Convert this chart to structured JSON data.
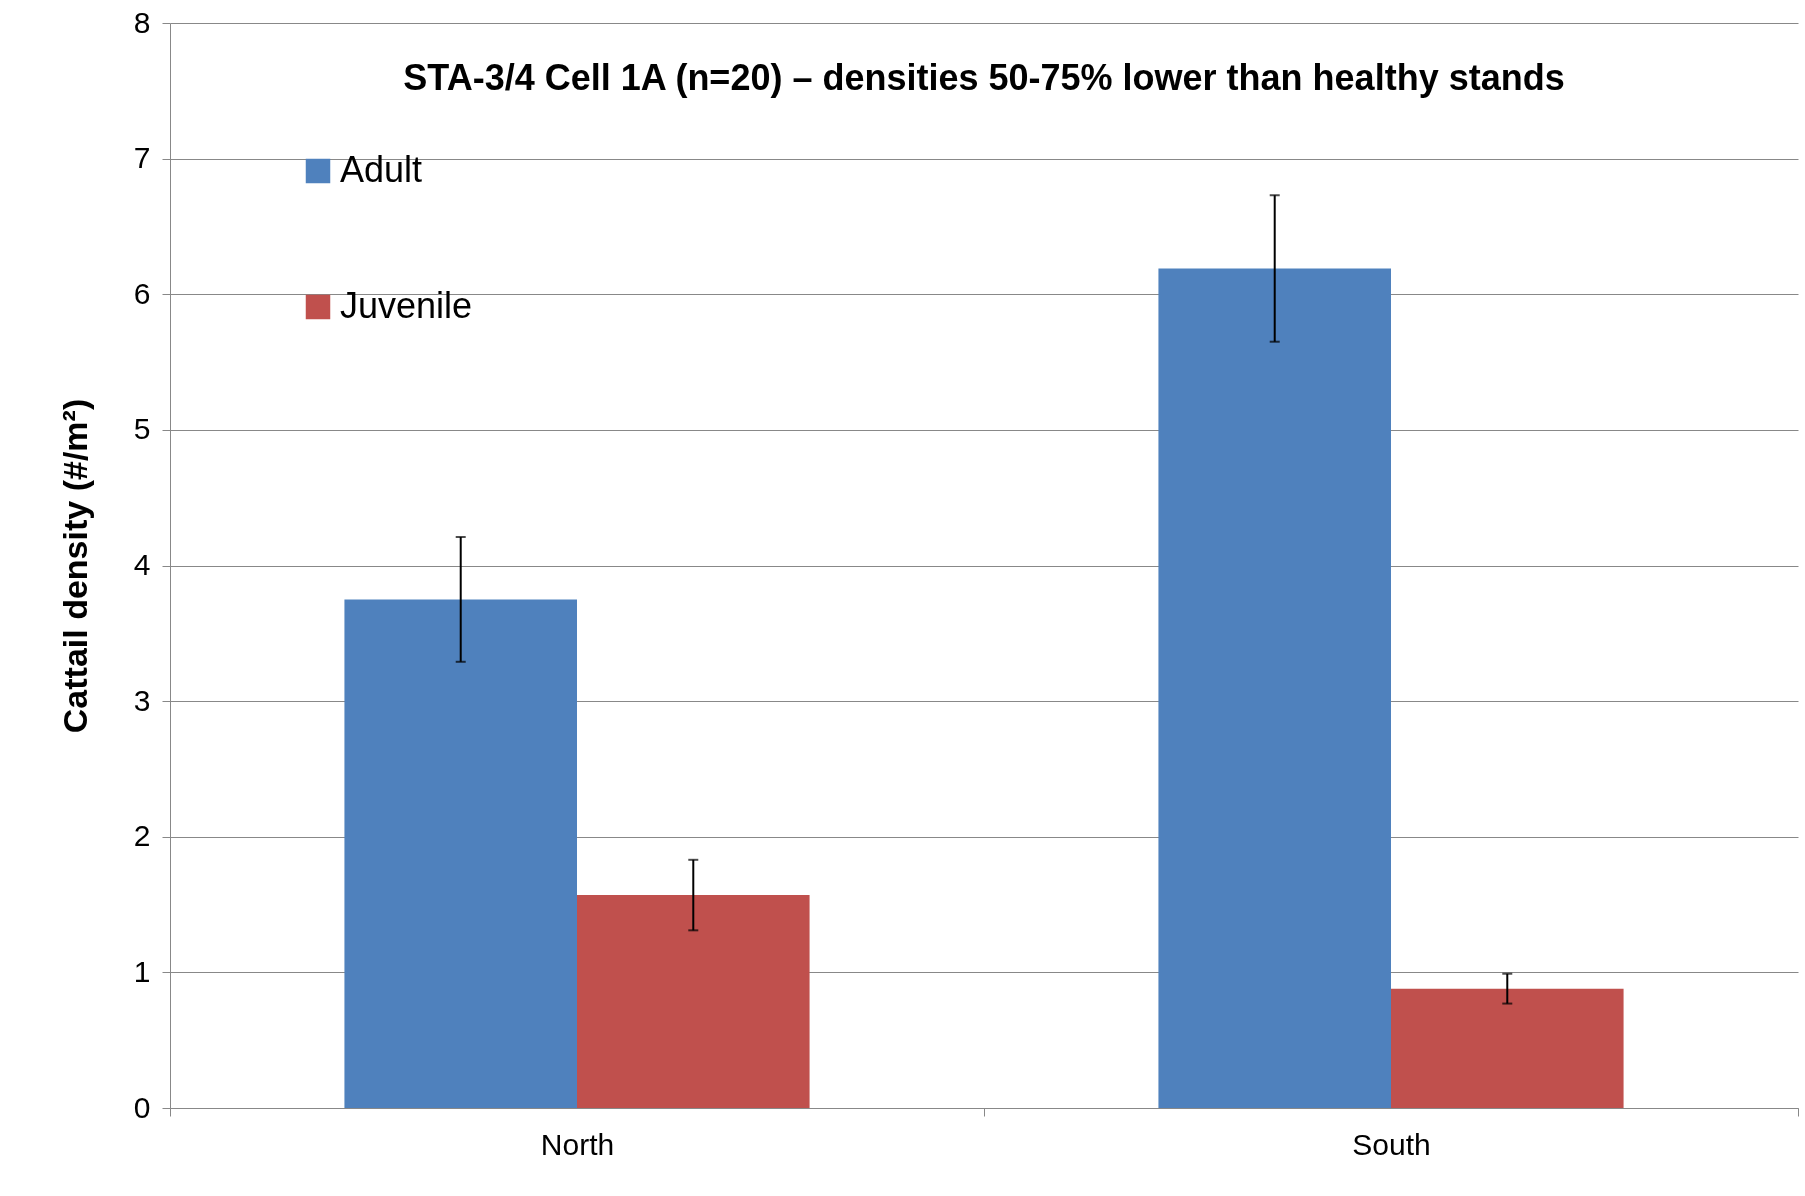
{
  "chart_data": {
    "type": "bar",
    "title": "STA-3/4 Cell 1A (n=20) – densities 50-75% lower than healthy stands",
    "ylabel": "Cattail density (#/m²)",
    "categories": [
      "North",
      "South"
    ],
    "series": [
      {
        "name": "Adult",
        "color": "#4f81bd",
        "values": [
          3.75,
          6.19
        ],
        "errors": [
          0.46,
          0.54
        ]
      },
      {
        "name": "Juvenile",
        "color": "#c0504d",
        "values": [
          1.57,
          0.88
        ],
        "errors": [
          0.26,
          0.11
        ]
      }
    ],
    "ylim": [
      0,
      8
    ],
    "yticks": [
      0,
      1,
      2,
      3,
      4,
      5,
      6,
      7,
      8
    ],
    "grid": "y",
    "legend": "top left"
  }
}
